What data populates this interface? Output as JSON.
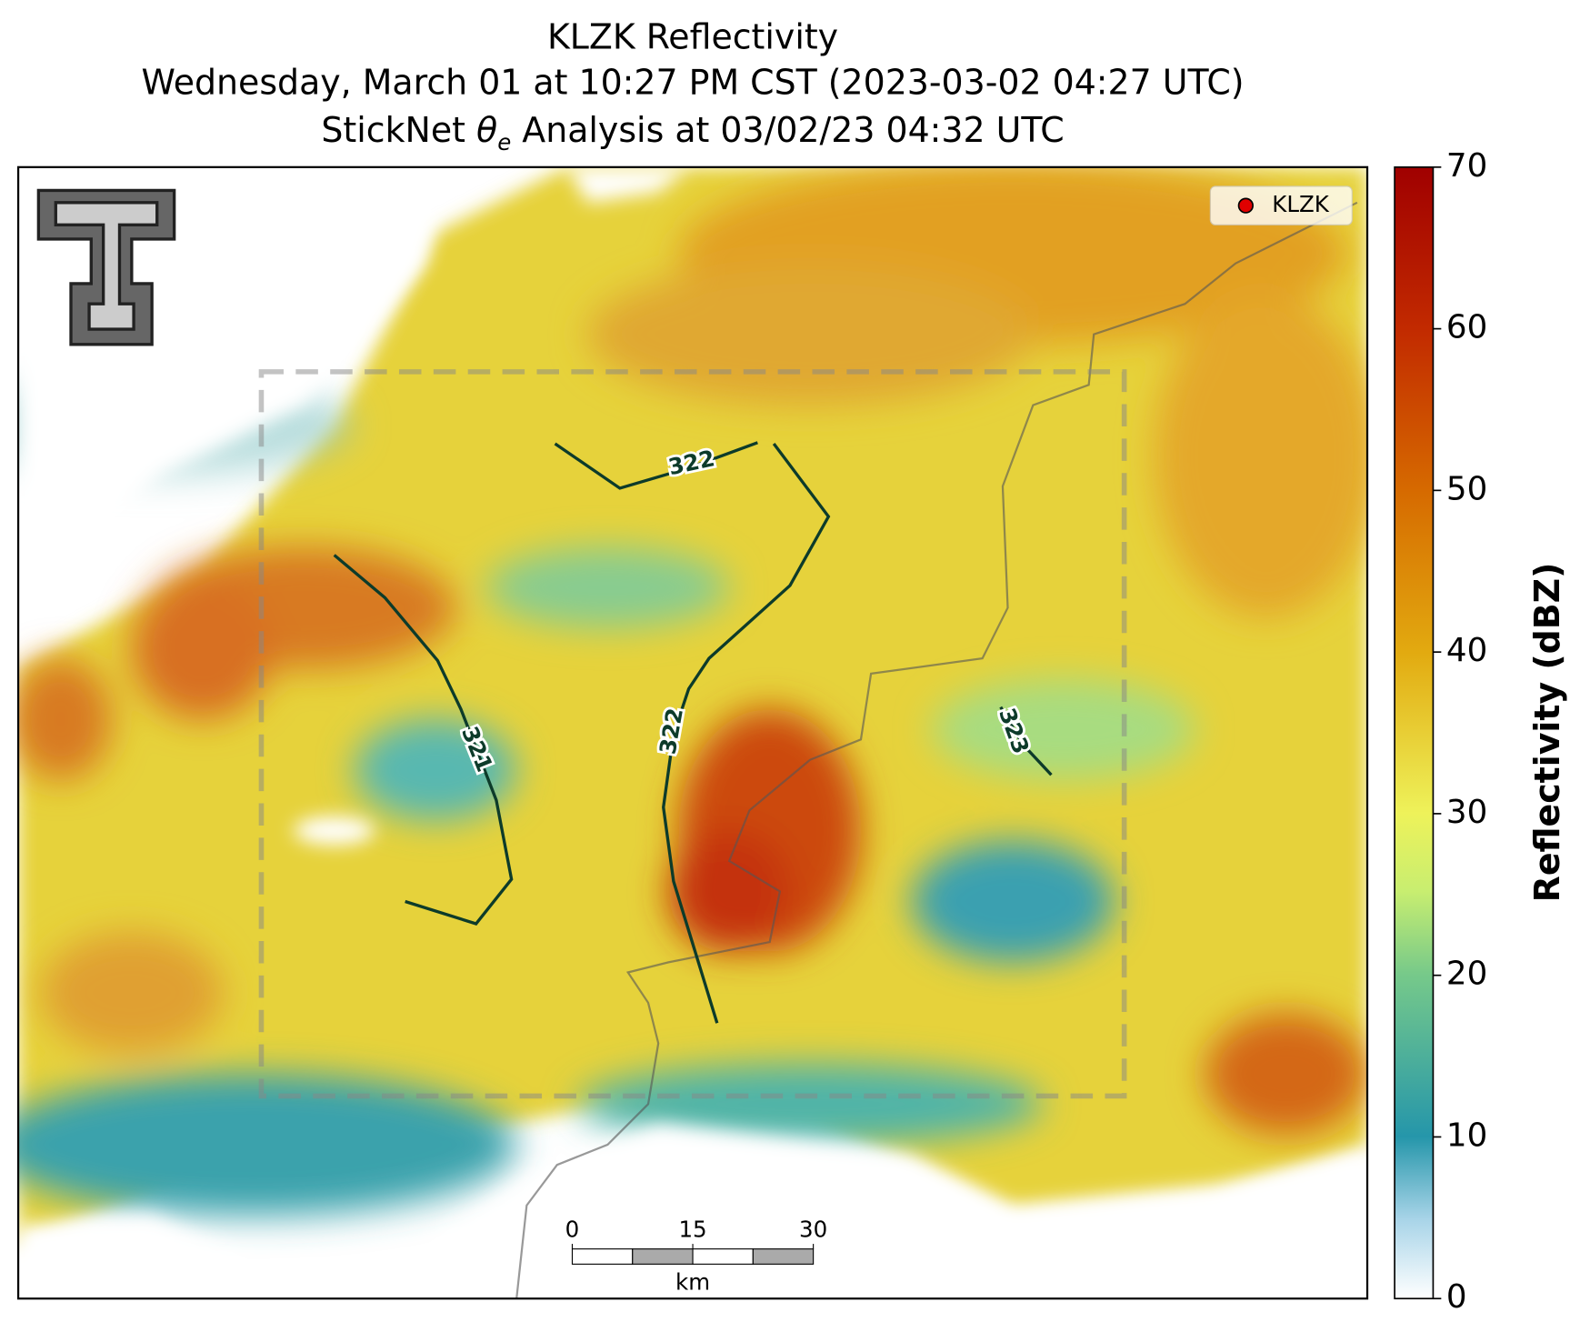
{
  "title": {
    "line1": "KLZK Reflectivity",
    "line2": "Wednesday, March 01 at 10:27 PM CST (2023-03-02 04:27 UTC)",
    "line3_prefix": "StickNet ",
    "line3_symbol": "θ",
    "line3_subscript": "e",
    "line3_suffix": " Analysis at 03/02/23 04:32 UTC"
  },
  "legend": {
    "label": "KLZK",
    "color": "#e00000"
  },
  "colorbar": {
    "label": "Reflectivity (dBZ)",
    "lim": [
      0,
      70
    ],
    "ticks": [
      0,
      10,
      20,
      30,
      40,
      50,
      60,
      70
    ]
  },
  "contours": [
    {
      "value": 321
    },
    {
      "value": 322
    },
    {
      "value": 322
    },
    {
      "value": 323
    }
  ],
  "scale_bar": {
    "lim": [
      0,
      30
    ],
    "ticks": [
      0,
      15,
      30
    ],
    "unit": "km"
  }
}
